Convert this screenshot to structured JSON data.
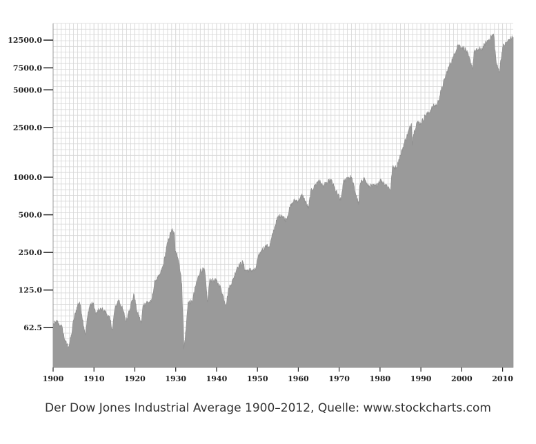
{
  "caption": "Der Dow Jones Industrial Average 1900–2012, Quelle: www.stockcharts.com",
  "chart_data": {
    "type": "area",
    "title": "",
    "xlabel": "",
    "ylabel": "",
    "yscale": "log",
    "xlim": [
      1900,
      2012.6
    ],
    "ylim": [
      30,
      17000
    ],
    "grid": true,
    "fill_color": "#9a9a9a",
    "grid_color": "#d6d6d6",
    "x_ticks": [
      1900,
      1910,
      1920,
      1930,
      1940,
      1950,
      1960,
      1970,
      1980,
      1990,
      2000,
      2010
    ],
    "x_tick_labels": [
      "1900",
      "1910",
      "1920",
      "1930",
      "1940",
      "1950",
      "1960",
      "1970",
      "1980",
      "1990",
      "2000",
      "2010"
    ],
    "y_ticks": [
      62.5,
      125,
      250,
      500,
      1000,
      2500,
      5000,
      7500,
      12500
    ],
    "y_tick_labels": [
      "62.5",
      "125.0",
      "250.0",
      "500.0",
      "1000.0",
      "2500.0",
      "5000.0",
      "7500.0",
      "12500.0"
    ],
    "series": [
      {
        "x": [
          1900,
          1901,
          1901.5,
          1902,
          1903,
          1903.8,
          1904.5,
          1905,
          1906,
          1906.5,
          1907,
          1907.9,
          1908.5,
          1909,
          1909.8,
          1910.5,
          1911,
          1912,
          1913,
          1914,
          1914.5,
          1915,
          1916,
          1917,
          1917.9,
          1918.5,
          1919,
          1919.8,
          1920.5,
          1921.6,
          1922,
          1923,
          1924,
          1925,
          1926,
          1927,
          1928,
          1929,
          1929.7,
          1929.9,
          1930.3,
          1930.9,
          1931.5,
          1932,
          1932.5,
          1933,
          1934,
          1935,
          1936,
          1937.1,
          1937.8,
          1938.3,
          1939,
          1940,
          1941,
          1942.3,
          1943,
          1944,
          1945,
          1946.4,
          1947,
          1948,
          1949.5,
          1950,
          1951,
          1952,
          1953,
          1954,
          1955,
          1956,
          1957,
          1958,
          1959,
          1960,
          1961,
          1962.5,
          1963,
          1964,
          1965,
          1966,
          1967,
          1968,
          1969,
          1970.4,
          1971,
          1972,
          1973,
          1974.8,
          1975,
          1976,
          1977,
          1978,
          1979,
          1980,
          1981,
          1982.6,
          1983,
          1984,
          1985,
          1986,
          1987.7,
          1987.9,
          1988,
          1989,
          1990,
          1991,
          1992,
          1993,
          1994,
          1995,
          1996,
          1997,
          1998,
          1999,
          2000,
          2001,
          2002.7,
          2003,
          2004,
          2005,
          2006,
          2007.8,
          2008.5,
          2009.2,
          2010,
          2011,
          2012,
          2012.6
        ],
        "y": [
          66,
          70,
          65,
          66,
          48,
          44,
          55,
          72,
          95,
          100,
          80,
          55,
          80,
          95,
          98,
          80,
          85,
          88,
          82,
          72,
          60,
          85,
          105,
          88,
          70,
          85,
          95,
          115,
          85,
          68,
          95,
          100,
          100,
          150,
          160,
          200,
          300,
          380,
          350,
          250,
          250,
          200,
          140,
          42,
          60,
          100,
          100,
          140,
          180,
          180,
          100,
          150,
          150,
          148,
          130,
          95,
          130,
          150,
          190,
          210,
          180,
          180,
          180,
          220,
          260,
          280,
          280,
          380,
          480,
          500,
          450,
          580,
          650,
          650,
          720,
          560,
          760,
          850,
          950,
          850,
          900,
          950,
          800,
          650,
          900,
          1000,
          1000,
          600,
          850,
          1000,
          850,
          850,
          850,
          950,
          900,
          800,
          1200,
          1200,
          1500,
          1900,
          2700,
          1800,
          2100,
          2750,
          2700,
          3100,
          3300,
          3700,
          3800,
          5000,
          6400,
          7900,
          9200,
          11500,
          11000,
          10500,
          7500,
          10000,
          10500,
          10700,
          12000,
          14000,
          8000,
          7000,
          11000,
          12000,
          13000,
          13200
        ]
      }
    ]
  }
}
